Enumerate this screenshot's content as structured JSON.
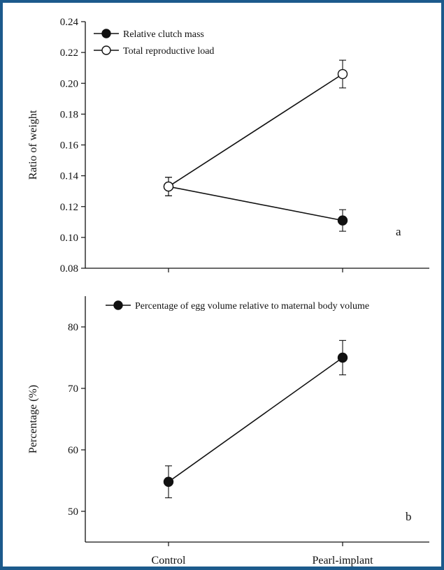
{
  "chart_data": [
    {
      "type": "line",
      "panel_label": "a",
      "ylabel": "Ratio of weight",
      "xlabel": "",
      "categories": [
        "Control",
        "Pearl-implant"
      ],
      "ylim": [
        0.08,
        0.24
      ],
      "yticks": [
        0.08,
        0.1,
        0.12,
        0.14,
        0.16,
        0.18,
        0.2,
        0.22,
        0.24
      ],
      "tick_decimals": 2,
      "series": [
        {
          "name": "Relative clutch mass",
          "marker": "filled",
          "values": [
            0.133,
            0.111
          ],
          "errors": [
            0.006,
            0.007
          ]
        },
        {
          "name": "Total reproductive load",
          "marker": "open",
          "values": [
            0.133,
            0.206
          ],
          "errors": [
            0.006,
            0.009
          ]
        }
      ]
    },
    {
      "type": "line",
      "panel_label": "b",
      "ylabel": "Percentage (%)",
      "xlabel": "",
      "categories": [
        "Control",
        "Pearl-implant"
      ],
      "ylim": [
        45,
        85
      ],
      "yticks": [
        50,
        60,
        70,
        80
      ],
      "tick_decimals": 0,
      "series": [
        {
          "name": "Percentage of egg volume relative to maternal body volume",
          "marker": "filled",
          "values": [
            54.8,
            75.0
          ],
          "errors": [
            2.6,
            2.8
          ]
        }
      ]
    }
  ],
  "colors": {
    "frame": "#1c5a8c",
    "ink": "#111111",
    "background": "#ffffff"
  }
}
